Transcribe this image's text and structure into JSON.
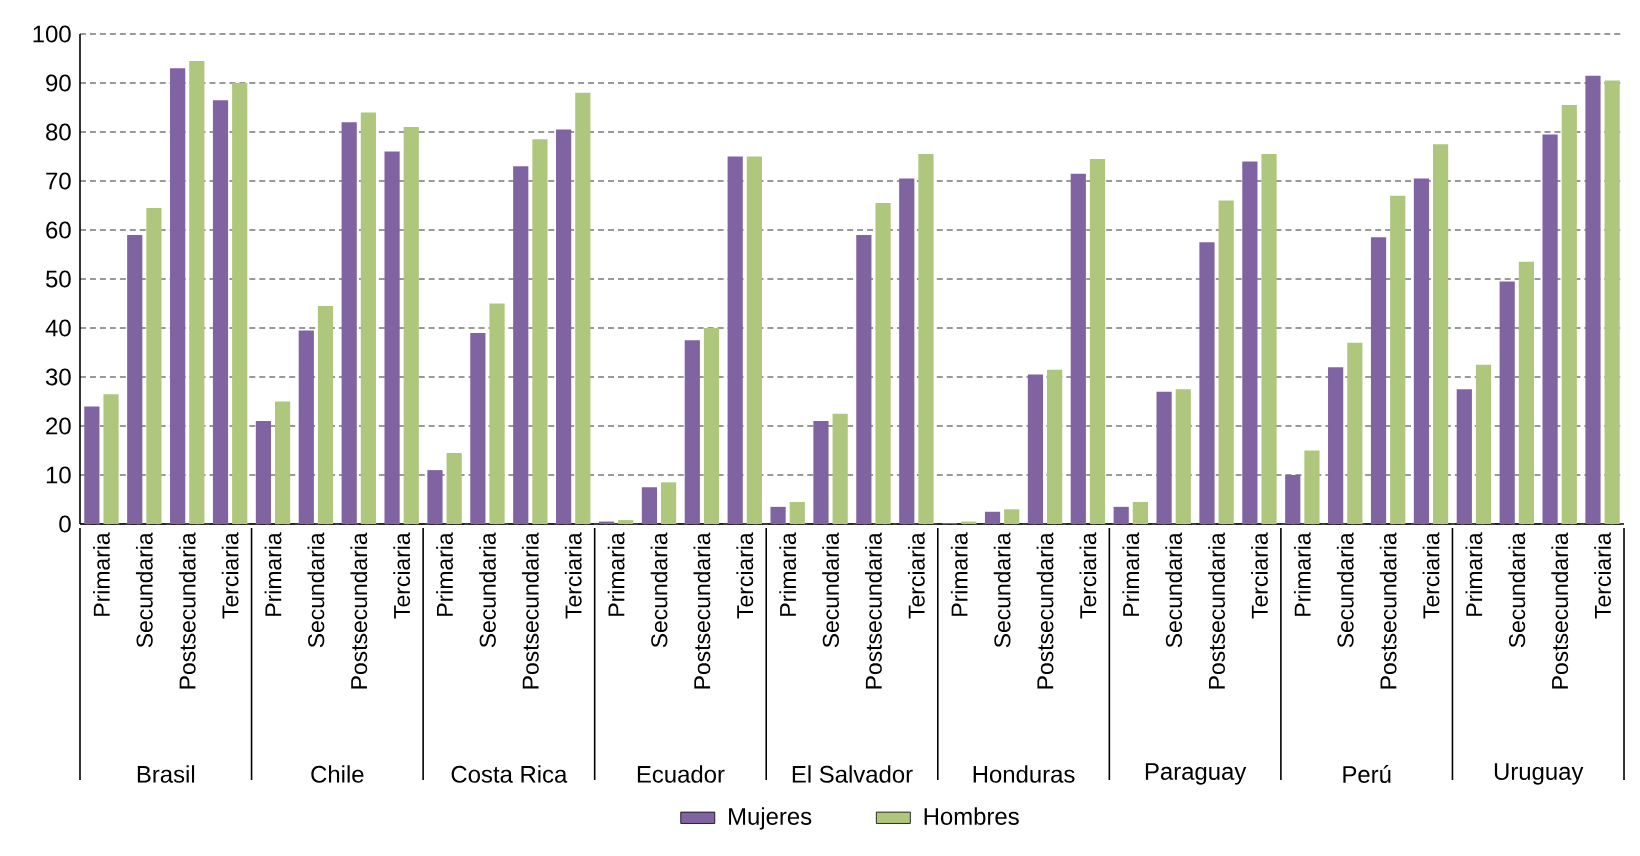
{
  "chart_data": {
    "type": "bar",
    "categories": [
      "Primaria",
      "Secundaria",
      "Postsecundaria",
      "Terciaria",
      "Primaria",
      "Secundaria",
      "Postsecundaria",
      "Terciaria",
      "Primaria",
      "Secundaria",
      "Postsecundaria",
      "Terciaria",
      "Primaria",
      "Secundaria",
      "Postsecundaria",
      "Terciaria",
      "Primaria",
      "Secundaria",
      "Postsecundaria",
      "Terciaria",
      "Primaria",
      "Secundaria",
      "Postsecundaria",
      "Terciaria",
      "Primaria",
      "Secundaria",
      "Postsecundaria",
      "Terciaria",
      "Primaria",
      "Secundaria",
      "Postsecundaria",
      "Terciaria",
      "Primaria",
      "Secundaria",
      "Postsecundaria",
      "Terciaria"
    ],
    "series": [
      {
        "name": "Mujeres",
        "color": "#8064a2",
        "values": [
          24,
          59,
          93,
          86.5,
          21,
          39.5,
          82,
          76,
          11,
          39,
          73,
          80.5,
          0.5,
          7.5,
          37.5,
          75,
          3.5,
          21,
          59,
          70.5,
          0.2,
          2.5,
          30.5,
          71.5,
          3.5,
          27,
          57.5,
          74,
          10,
          32,
          58.5,
          70.5,
          27.5,
          49.5,
          79.5,
          91.5
        ]
      },
      {
        "name": "Hombres",
        "color": "#afc77c",
        "values": [
          26.5,
          64.5,
          94.5,
          90,
          25,
          44.5,
          84,
          81,
          14.5,
          45,
          78.5,
          88,
          0.8,
          8.5,
          40,
          75,
          4.5,
          22.5,
          65.5,
          75.5,
          0.5,
          3,
          31.5,
          74.5,
          4.5,
          27.5,
          66,
          75.5,
          15,
          37,
          67,
          77.5,
          32.5,
          53.5,
          85.5,
          90.5
        ]
      }
    ],
    "annotations": [
      "Brasil",
      "Chile",
      "Costa Rica",
      "Ecuador",
      "El Salvador",
      "Honduras",
      "Paraguay",
      "Perú",
      "Uruguay"
    ],
    "ylim": [
      0,
      100
    ],
    "yticks": [
      0,
      10,
      20,
      30,
      40,
      50,
      60,
      70,
      80,
      90,
      100
    ],
    "grid": "y",
    "legend": "bottom"
  }
}
